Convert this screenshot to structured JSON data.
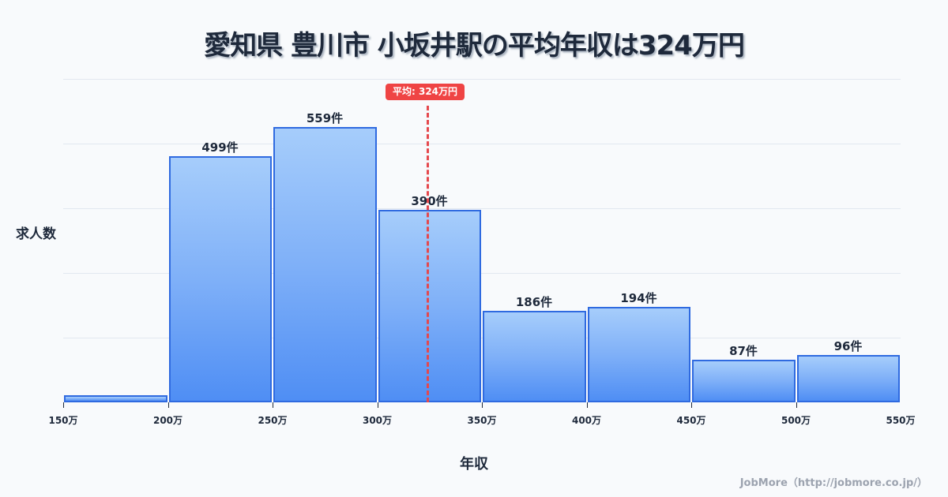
{
  "title": "愛知県 豊川市 小坂井駅の平均年収は324万円",
  "axes": {
    "ylabel": "求人数",
    "xlabel": "年収"
  },
  "average": {
    "label": "平均: 324万円",
    "value": 324,
    "color": "#ef4444"
  },
  "footer": "JobMore（http://jobmore.co.jp/）",
  "colors": {
    "bar_border": "#2f6ae0",
    "bar_top": "#a6cdfb",
    "bar_bottom": "#4f8ef4",
    "grid": "#e2e8f0",
    "text": "#1e293b"
  },
  "ticks": [
    "150万",
    "200万",
    "250万",
    "300万",
    "350万",
    "400万",
    "450万",
    "500万",
    "550万"
  ],
  "bars": [
    {
      "range": "150-200万",
      "value": 14,
      "label": ""
    },
    {
      "range": "200-250万",
      "value": 499,
      "label": "499件"
    },
    {
      "range": "250-300万",
      "value": 559,
      "label": "559件"
    },
    {
      "range": "300-350万",
      "value": 390,
      "label": "390件"
    },
    {
      "range": "350-400万",
      "value": 186,
      "label": "186件"
    },
    {
      "range": "400-450万",
      "value": 194,
      "label": "194件"
    },
    {
      "range": "450-500万",
      "value": 87,
      "label": "87件"
    },
    {
      "range": "500-550万",
      "value": 96,
      "label": "96件"
    }
  ],
  "chart_data": {
    "type": "bar",
    "title": "愛知県 豊川市 小坂井駅の平均年収は324万円",
    "xlabel": "年収",
    "ylabel": "求人数",
    "categories": [
      "150-200万",
      "200-250万",
      "250-300万",
      "300-350万",
      "350-400万",
      "400-450万",
      "450-500万",
      "500-550万"
    ],
    "values": [
      14,
      499,
      559,
      390,
      186,
      194,
      87,
      96
    ],
    "x_ticks": [
      "150万",
      "200万",
      "250万",
      "300万",
      "350万",
      "400万",
      "450万",
      "500万",
      "550万"
    ],
    "ylim": [
      0,
      657
    ],
    "grid": true,
    "annotations": [
      {
        "type": "vline",
        "x": 324,
        "label": "平均: 324万円",
        "style": "dashed",
        "color": "#ef4444"
      }
    ],
    "legend": null
  }
}
